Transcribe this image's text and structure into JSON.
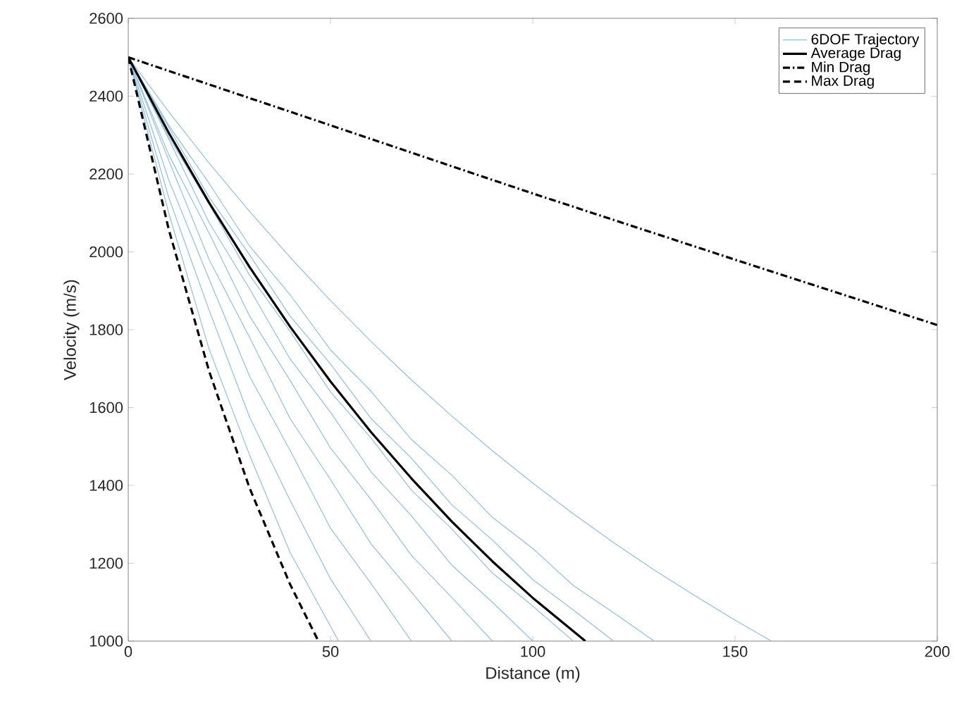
{
  "chart_data": {
    "type": "line",
    "xlabel": "Distance (m)",
    "ylabel": "Velocity (m/s)",
    "xlim": [
      0,
      200
    ],
    "ylim": [
      1000,
      2600
    ],
    "xticks": [
      0,
      50,
      100,
      150,
      200
    ],
    "yticks": [
      1000,
      1200,
      1400,
      1600,
      1800,
      2000,
      2200,
      2400,
      2600
    ],
    "grid": false,
    "legend": "top right",
    "marker": "none",
    "series": [
      {
        "name": "6DOF Trajectory",
        "color": "#8fbfe0",
        "line_style": "solid",
        "x": [
          0,
          10,
          20,
          30,
          40,
          52
        ],
        "values": [
          2500,
          2100,
          1750,
          1478,
          1228,
          1000
        ]
      },
      {
        "color": "#8fbfe0",
        "line_style": "solid",
        "x": [
          0,
          10,
          20,
          30,
          40,
          50,
          60
        ],
        "values": [
          2500,
          2140,
          1850,
          1575,
          1362,
          1160,
          1000
        ]
      },
      {
        "color": "#8fbfe0",
        "line_style": "solid",
        "x": [
          0,
          10,
          20,
          30,
          40,
          50,
          60,
          70
        ],
        "values": [
          2500,
          2185,
          1930,
          1680,
          1490,
          1290,
          1148,
          1000
        ]
      },
      {
        "color": "#8fbfe0",
        "line_style": "solid",
        "x": [
          0,
          10,
          20,
          30,
          40,
          50,
          60,
          70,
          80
        ],
        "values": [
          2500,
          2235,
          1980,
          1780,
          1572,
          1415,
          1250,
          1126,
          1000
        ]
      },
      {
        "color": "#8fbfe0",
        "line_style": "solid",
        "x": [
          0,
          10,
          20,
          30,
          40,
          50,
          60,
          70,
          80,
          90
        ],
        "values": [
          2500,
          2250,
          2048,
          1835,
          1670,
          1496,
          1364,
          1220,
          1112,
          1000
        ]
      },
      {
        "color": "#8fbfe0",
        "line_style": "solid",
        "x": [
          0,
          10,
          20,
          30,
          40,
          50,
          60,
          70,
          80,
          90,
          100
        ],
        "values": [
          2500,
          2290,
          2075,
          1905,
          1725,
          1588,
          1435,
          1322,
          1195,
          1100,
          1000
        ]
      },
      {
        "color": "#8fbfe0",
        "line_style": "solid",
        "x": [
          0,
          10,
          20,
          30,
          40,
          50,
          60,
          70,
          80,
          90,
          100,
          110
        ],
        "values": [
          2500,
          2295,
          2122,
          1940,
          1796,
          1640,
          1522,
          1388,
          1288,
          1175,
          1090,
          1000
        ]
      },
      {
        "color": "#8fbfe0",
        "line_style": "solid",
        "x": [
          0,
          10,
          20,
          30,
          40,
          50,
          60,
          70,
          80,
          90,
          100,
          110,
          120
        ],
        "values": [
          2500,
          2320,
          2140,
          1992,
          1835,
          1712,
          1572,
          1470,
          1350,
          1260,
          1158,
          1080,
          1000
        ]
      },
      {
        "color": "#8fbfe0",
        "line_style": "solid",
        "x": [
          0,
          10,
          20,
          30,
          40,
          50,
          60,
          70,
          80,
          90,
          100,
          110,
          120,
          130
        ],
        "values": [
          2500,
          2325,
          2176,
          2015,
          1890,
          1748,
          1642,
          1518,
          1426,
          1318,
          1238,
          1143,
          1073,
          1000
        ]
      },
      {
        "color": "#8fbfe0",
        "line_style": "solid",
        "x": [
          0,
          10,
          20,
          30,
          40,
          50,
          60,
          70,
          80,
          90,
          100,
          110,
          120,
          130,
          140,
          150,
          159
        ],
        "values": [
          2500,
          2360,
          2228,
          2104,
          1986,
          1875,
          1770,
          1671,
          1578,
          1489,
          1406,
          1327,
          1253,
          1183,
          1117,
          1054,
          1000
        ]
      },
      {
        "name": "Average Drag",
        "color": "#000000",
        "line_style": "solid",
        "x": [
          0,
          10,
          20,
          30,
          40,
          50,
          60,
          70,
          80,
          90,
          100,
          113
        ],
        "values": [
          2500,
          2306,
          2126,
          1961,
          1808,
          1667,
          1537,
          1418,
          1307,
          1205,
          1111,
          1000
        ]
      },
      {
        "name": "Min Drag",
        "color": "#000000",
        "line_style": "dashdot",
        "x": [
          0,
          50,
          100,
          150,
          200
        ],
        "values": [
          2500,
          2325,
          2150,
          1980,
          1812
        ]
      },
      {
        "name": "Max Drag",
        "color": "#000000",
        "line_style": "dashed",
        "x": [
          0,
          10,
          20,
          30,
          40,
          47
        ],
        "values": [
          2500,
          2058,
          1693,
          1393,
          1146,
          1000
        ]
      }
    ]
  }
}
